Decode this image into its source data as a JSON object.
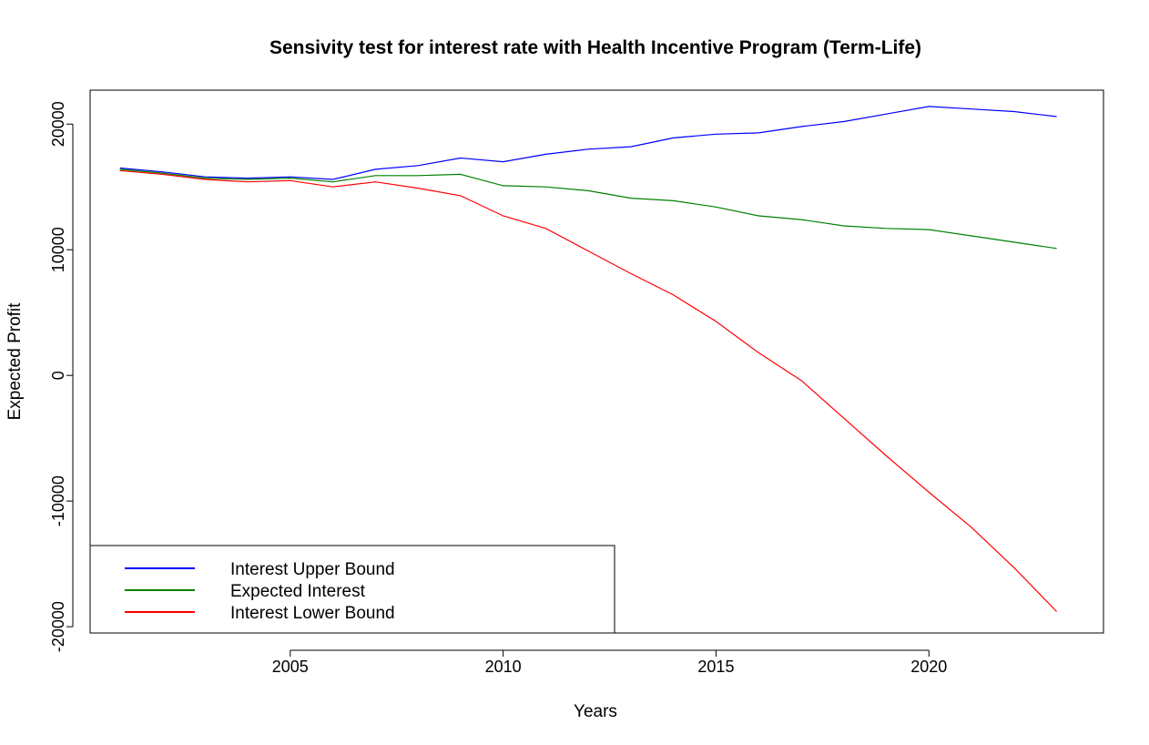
{
  "chart_data": {
    "type": "line",
    "title": "Sensivity test for interest rate with Health Incentive Program (Term-Life)",
    "xlabel": "Years",
    "ylabel": "Expected Profit",
    "xlim": [
      2000.3,
      2024.1
    ],
    "ylim": [
      -20500,
      22700
    ],
    "x_ticks": [
      2005,
      2010,
      2015,
      2020
    ],
    "y_ticks": [
      -20000,
      -10000,
      0,
      10000,
      20000
    ],
    "x_tick_labels": [
      "2005",
      "2010",
      "2015",
      "2020"
    ],
    "y_tick_labels": [
      "-20000",
      "-10000",
      "0",
      "10000",
      "20000"
    ],
    "grid": false,
    "legend_position": "bottom-left",
    "x": [
      2001,
      2002,
      2003,
      2004,
      2005,
      2006,
      2007,
      2008,
      2009,
      2010,
      2011,
      2012,
      2013,
      2014,
      2015,
      2016,
      2017,
      2018,
      2019,
      2020,
      2021,
      2022,
      2023
    ],
    "series": [
      {
        "name": "Interest Upper Bound",
        "color": "#0000ff",
        "values": [
          16500,
          16200,
          15800,
          15700,
          15800,
          15600,
          16400,
          16700,
          17300,
          17000,
          17600,
          18000,
          18200,
          18900,
          19200,
          19300,
          19800,
          20200,
          20800,
          21400,
          21200,
          21000,
          20600
        ]
      },
      {
        "name": "Expected Interest",
        "color": "#008000",
        "values": [
          16400,
          16100,
          15700,
          15600,
          15700,
          15400,
          15900,
          15900,
          16000,
          15100,
          15000,
          14700,
          14100,
          13900,
          13400,
          12700,
          12400,
          11900,
          11700,
          11600,
          11100,
          10600,
          10100
        ]
      },
      {
        "name": "Interest Lower Bound",
        "color": "#ff0000",
        "values": [
          16300,
          16000,
          15600,
          15400,
          15500,
          15000,
          15400,
          14900,
          14300,
          12700,
          11700,
          9900,
          8100,
          6400,
          4300,
          1800,
          -400,
          -3400,
          -6400,
          -9300,
          -12100,
          -15300,
          -18800
        ]
      }
    ]
  }
}
